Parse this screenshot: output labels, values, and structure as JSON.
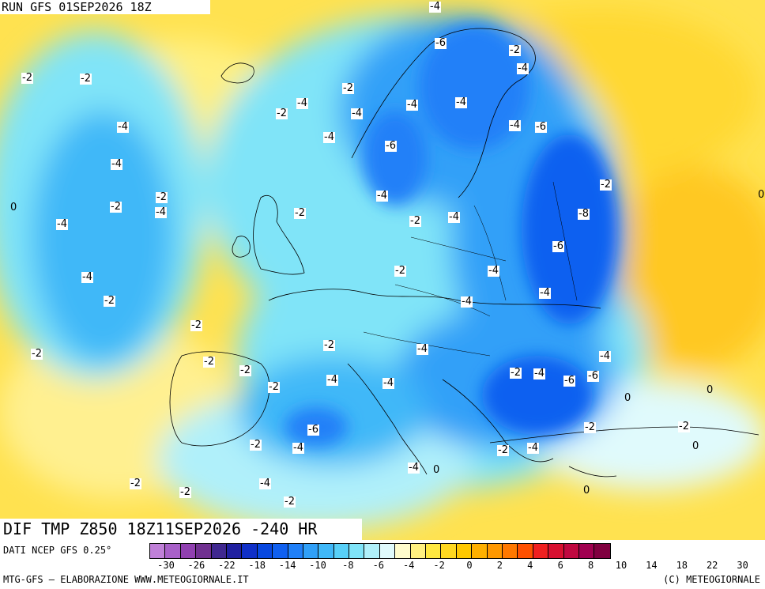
{
  "header": {
    "run_text": "RUN GFS 01SEP2026 18Z"
  },
  "map_title": {
    "text": "DIF TMP Z850 18Z11SEP2026 -240 HR"
  },
  "legend": {
    "source_text": "DATI NCEP GFS 0.25°",
    "colors": [
      "#c080d8",
      "#a860c8",
      "#9040b0",
      "#703090",
      "#402890",
      "#2020a0",
      "#1030c8",
      "#0848e0",
      "#1060f0",
      "#2080f8",
      "#30a0f8",
      "#40b8f8",
      "#58d0f8",
      "#80e4f8",
      "#b0f0fa",
      "#e0fafc",
      "#fffccc",
      "#fff080",
      "#ffe840",
      "#ffd820",
      "#ffc800",
      "#ffb000",
      "#ff9800",
      "#ff7800",
      "#ff5000",
      "#f02020",
      "#d81030",
      "#c00840",
      "#a00050",
      "#800040"
    ],
    "tick_labels": [
      "-30",
      "-26",
      "-22",
      "-18",
      "-14",
      "-10",
      "-8",
      "-6",
      "-4",
      "-2",
      "0",
      "2",
      "4",
      "6",
      "8",
      "10",
      "14",
      "18",
      "22",
      "30"
    ]
  },
  "footer": {
    "left_text": "MTG-GFS — ELABORAZIONE WWW.METEOGIORNALE.IT",
    "right_text": "(C) METEOGIORNALE"
  },
  "contour_labels": [
    {
      "text": "-4"
    },
    {
      "text": "-2"
    },
    {
      "text": "-2"
    },
    {
      "text": "-4"
    },
    {
      "text": "-6"
    },
    {
      "text": "-2"
    },
    {
      "text": "-2"
    },
    {
      "text": "-4"
    },
    {
      "text": "-2"
    },
    {
      "text": "-4"
    },
    {
      "text": "-4"
    },
    {
      "text": "-4"
    },
    {
      "text": "-4"
    },
    {
      "text": "-4"
    },
    {
      "text": "-4"
    },
    {
      "text": "-6"
    },
    {
      "text": "-4"
    },
    {
      "text": "-6"
    },
    {
      "text": "-4"
    },
    {
      "text": "-2"
    },
    {
      "text": "-2"
    },
    {
      "text": "-4"
    },
    {
      "text": "0"
    },
    {
      "text": "-2"
    },
    {
      "text": "-8"
    },
    {
      "text": "-4"
    },
    {
      "text": "-2"
    },
    {
      "text": "-4"
    },
    {
      "text": "-2"
    },
    {
      "text": "-6"
    },
    {
      "text": "-4"
    },
    {
      "text": "-2"
    },
    {
      "text": "-4"
    },
    {
      "text": "-2"
    },
    {
      "text": "-4"
    },
    {
      "text": "-4"
    },
    {
      "text": "-2"
    },
    {
      "text": "-2"
    },
    {
      "text": "-2"
    },
    {
      "text": "-2"
    },
    {
      "text": "-2"
    },
    {
      "text": "-4"
    },
    {
      "text": "-2"
    },
    {
      "text": "-4"
    },
    {
      "text": "-4"
    },
    {
      "text": "-2"
    },
    {
      "text": "-4"
    },
    {
      "text": "-6"
    },
    {
      "text": "-6"
    },
    {
      "text": "-4"
    },
    {
      "text": "0"
    },
    {
      "text": "0"
    },
    {
      "text": "-6"
    },
    {
      "text": "-2"
    },
    {
      "text": "-2"
    },
    {
      "text": "-2"
    },
    {
      "text": "-4"
    },
    {
      "text": "0"
    },
    {
      "text": "-2"
    },
    {
      "text": "-4"
    },
    {
      "text": "0"
    },
    {
      "text": "-2"
    },
    {
      "text": "-4"
    },
    {
      "text": "-2"
    },
    {
      "text": "0"
    },
    {
      "text": "-2"
    },
    {
      "text": "-4"
    },
    {
      "text": "0"
    }
  ]
}
